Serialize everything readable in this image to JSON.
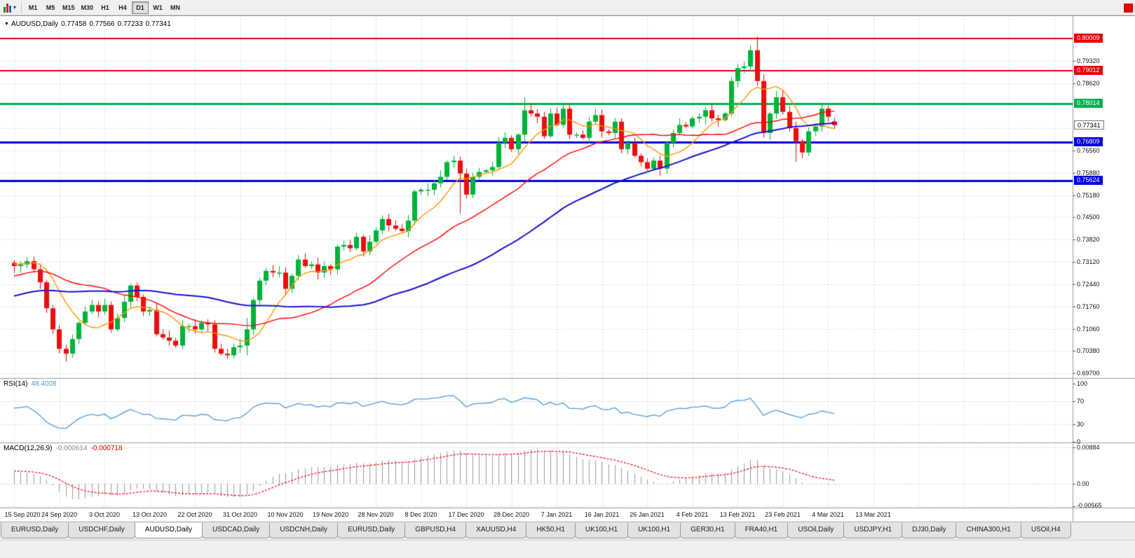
{
  "toolbar": {
    "timeframes": [
      "M1",
      "M5",
      "M15",
      "M30",
      "H1",
      "H4",
      "D1",
      "W1",
      "MN"
    ],
    "selected_timeframe": "D1"
  },
  "chart": {
    "header": {
      "symbol": "AUDUSD,Daily",
      "open": "0.77458",
      "high": "0.77566",
      "low": "0.77233",
      "close": "0.77341"
    },
    "price_scale": {
      "labels": [
        "0.79320",
        "0.78620",
        "0.76560",
        "0.75880",
        "0.75180",
        "0.74500",
        "0.73820",
        "0.73120",
        "0.72440",
        "0.71760",
        "0.71060",
        "0.70380",
        "0.69700"
      ],
      "gridline_prices": [
        0.8002,
        0.7932,
        0.7862,
        0.7792,
        0.7724,
        0.7656,
        0.7588,
        0.7518,
        0.745,
        0.7382,
        0.7312,
        0.7244,
        0.7176,
        0.7106,
        0.7038,
        0.697
      ]
    },
    "hlines": [
      {
        "price": 0.80009,
        "label": "0.80009",
        "color": "#e40000",
        "width": 2
      },
      {
        "price": 0.79012,
        "label": "0.79012",
        "color": "#e40000",
        "width": 2
      },
      {
        "price": 0.78014,
        "label": "0.78014",
        "color": "#00b14f",
        "width": 3
      },
      {
        "price": 0.76809,
        "label": "0.76809",
        "color": "#0000e0",
        "width": 3
      },
      {
        "price": 0.75624,
        "label": "0.75624",
        "color": "#0000e0",
        "width": 3
      }
    ],
    "current_price": {
      "price": 0.77341,
      "label": "0.77341"
    },
    "colors": {
      "up": "#00b23a",
      "down": "#ec0e0e",
      "ma_fast": "#ff9900",
      "ma_mid": "#ff0000",
      "ma_slow": "#1414cc",
      "rsi": "#4f9bd9",
      "macd_hist": "#9c9c9c",
      "macd_signal": "#ff0000",
      "grid": "#d2d2d2",
      "separator": "#9a9a9a"
    }
  },
  "chart_data": {
    "type": "candlestick",
    "symbol": "AUDUSD",
    "timeframe": "Daily",
    "x_labels": [
      "15 Sep 2020",
      "24 Sep 2020",
      "3 Oct 2020",
      "13 Oct 2020",
      "22 Oct 2020",
      "31 Oct 2020",
      "10 Nov 2020",
      "19 Nov 2020",
      "28 Nov 2020",
      "8 Dec 2020",
      "17 Dec 2020",
      "28 Dec 2020",
      "7 Jan 2021",
      "16 Jan 2021",
      "26 Jan 2021",
      "4 Feb 2021",
      "13 Feb 2021",
      "23 Feb 2021",
      "4 Mar 2021",
      "13 Mar 2021"
    ],
    "closes": [
      0.73,
      0.7305,
      0.7315,
      0.729,
      0.725,
      0.717,
      0.7105,
      0.7045,
      0.703,
      0.7075,
      0.7125,
      0.716,
      0.718,
      0.716,
      0.718,
      0.7105,
      0.714,
      0.719,
      0.724,
      0.7205,
      0.716,
      0.7165,
      0.709,
      0.708,
      0.707,
      0.7055,
      0.7115,
      0.7115,
      0.7105,
      0.7125,
      0.712,
      0.7045,
      0.703,
      0.7025,
      0.705,
      0.7055,
      0.7105,
      0.7195,
      0.7255,
      0.7285,
      0.728,
      0.728,
      0.723,
      0.727,
      0.732,
      0.73,
      0.7305,
      0.728,
      0.73,
      0.729,
      0.736,
      0.7365,
      0.7355,
      0.739,
      0.7345,
      0.7375,
      0.741,
      0.7445,
      0.7425,
      0.7415,
      0.7408,
      0.744,
      0.753,
      0.7535,
      0.7535,
      0.7555,
      0.7575,
      0.762,
      0.7625,
      0.7585,
      0.752,
      0.7575,
      0.759,
      0.7595,
      0.7605,
      0.768,
      0.7695,
      0.766,
      0.7705,
      0.778,
      0.777,
      0.776,
      0.77,
      0.777,
      0.7735,
      0.7785,
      0.7705,
      0.7705,
      0.7695,
      0.7745,
      0.7765,
      0.7715,
      0.771,
      0.7745,
      0.766,
      0.768,
      0.764,
      0.762,
      0.76,
      0.7625,
      0.76,
      0.768,
      0.771,
      0.7735,
      0.773,
      0.7755,
      0.776,
      0.778,
      0.7755,
      0.775,
      0.777,
      0.787,
      0.791,
      0.7915,
      0.7965,
      0.787,
      0.771,
      0.777,
      0.782,
      0.7775,
      0.7725,
      0.7685,
      0.765,
      0.7715,
      0.773,
      0.7785,
      0.776,
      0.7734
    ],
    "wick_overrides": {
      "8": [
        null,
        0.7006
      ],
      "36": [
        0.714,
        0.7025
      ],
      "69": [
        null,
        0.7462
      ],
      "79": [
        0.782,
        null
      ],
      "115": [
        0.8007,
        null
      ],
      "116": [
        null,
        0.7695
      ],
      "121": [
        null,
        0.7621
      ]
    },
    "ohlc_current": [
      0.77458,
      0.77566,
      0.77233,
      0.77341
    ],
    "y_range": [
      0.6957,
      0.8057
    ]
  },
  "rsi": {
    "name": "RSI(14)",
    "value": "48.4008",
    "axis": [
      "100",
      "70",
      "30",
      "0"
    ],
    "levels": [
      70,
      30
    ]
  },
  "macd": {
    "name": "MACD(12,26,9)",
    "value1": "-0.000614",
    "value2": "-0.000718",
    "axis": [
      "0.00884",
      "0.00",
      "-0.00565"
    ]
  },
  "tabs": {
    "items": [
      "EURUSD,Daily",
      "USDCHF,Daily",
      "AUDUSD,Daily",
      "USDCAD,Daily",
      "USDCNH,Daily",
      "EURUSD,Daily",
      "GBPUSD,H4",
      "XAUUSD,H4",
      "HK50,H1",
      "UK100,H1",
      "UK100,H1",
      "GER30,H1",
      "FRA40,H1",
      "USOil,Daily",
      "USDJPY,H1",
      "DJ30,Daily",
      "CHINA300,H1",
      "USOil,H4"
    ],
    "active_index": 2
  }
}
